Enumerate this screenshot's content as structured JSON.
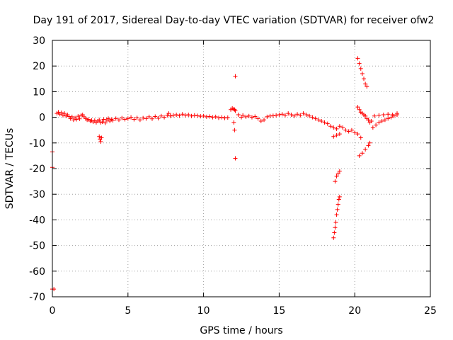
{
  "chart_data": {
    "type": "scatter",
    "title": "Day 191 of 2017, Sidereal Day-to-day VTEC variation (SDTVAR) for receiver ofw2",
    "xlabel": "GPS time / hours",
    "ylabel": "SDTVAR / TECUs",
    "xlim": [
      0,
      25
    ],
    "ylim": [
      -70,
      30
    ],
    "x_ticks": [
      0,
      5,
      10,
      15,
      20,
      25
    ],
    "y_ticks": [
      -70,
      -60,
      -50,
      -40,
      -30,
      -20,
      -10,
      0,
      10,
      20,
      30
    ],
    "x_tick_labels": [
      "0",
      "5",
      "10",
      "15",
      "20",
      "25"
    ],
    "y_tick_labels": [
      "-70",
      "-60",
      "-50",
      "-40",
      "-30",
      "-20",
      "-10",
      "0",
      "10",
      "20",
      "30"
    ],
    "grid": true,
    "marker": "+",
    "marker_color": "#ff0000",
    "series": [
      {
        "name": "SDTVAR",
        "points": [
          [
            0.0,
            -13.5
          ],
          [
            0.0,
            -19.5
          ],
          [
            0.0,
            -67.0
          ],
          [
            0.1,
            -67.0
          ],
          [
            0.3,
            1.5
          ],
          [
            0.4,
            2.0
          ],
          [
            0.5,
            1.2
          ],
          [
            0.6,
            1.8
          ],
          [
            0.7,
            0.8
          ],
          [
            0.8,
            1.5
          ],
          [
            0.9,
            0.5
          ],
          [
            1.0,
            1.0
          ],
          [
            1.1,
            0.3
          ],
          [
            1.2,
            -0.5
          ],
          [
            1.3,
            0.2
          ],
          [
            1.4,
            -1.0
          ],
          [
            1.5,
            -0.3
          ],
          [
            1.6,
            -0.8
          ],
          [
            1.7,
            0.4
          ],
          [
            1.8,
            -0.6
          ],
          [
            1.9,
            0.8
          ],
          [
            2.0,
            1.0
          ],
          [
            2.1,
            0.2
          ],
          [
            2.2,
            -0.5
          ],
          [
            2.3,
            -1.0
          ],
          [
            2.4,
            -0.8
          ],
          [
            2.5,
            -1.5
          ],
          [
            2.6,
            -1.2
          ],
          [
            2.7,
            -1.8
          ],
          [
            2.8,
            -1.3
          ],
          [
            2.9,
            -2.0
          ],
          [
            3.0,
            -1.5
          ],
          [
            3.1,
            -1.0
          ],
          [
            3.2,
            -2.0
          ],
          [
            3.1,
            -7.5
          ],
          [
            3.15,
            -8.5
          ],
          [
            3.2,
            -9.5
          ],
          [
            3.25,
            -8.0
          ],
          [
            3.3,
            -1.8
          ],
          [
            3.4,
            -0.8
          ],
          [
            3.5,
            -2.2
          ],
          [
            3.6,
            -1.0
          ],
          [
            3.7,
            -0.5
          ],
          [
            3.8,
            -1.5
          ],
          [
            3.9,
            -0.8
          ],
          [
            4.0,
            -1.2
          ],
          [
            4.2,
            -0.5
          ],
          [
            4.4,
            -1.0
          ],
          [
            4.6,
            -0.3
          ],
          [
            4.8,
            -0.8
          ],
          [
            5.0,
            -0.5
          ],
          [
            5.2,
            0.0
          ],
          [
            5.4,
            -0.8
          ],
          [
            5.6,
            -0.2
          ],
          [
            5.8,
            -1.0
          ],
          [
            6.0,
            -0.3
          ],
          [
            6.2,
            -0.5
          ],
          [
            6.4,
            0.2
          ],
          [
            6.6,
            -0.6
          ],
          [
            6.8,
            0.3
          ],
          [
            7.0,
            -0.4
          ],
          [
            7.2,
            0.5
          ],
          [
            7.4,
            0.0
          ],
          [
            7.6,
            0.8
          ],
          [
            7.7,
            1.5
          ],
          [
            7.8,
            0.5
          ],
          [
            8.0,
            0.8
          ],
          [
            8.2,
            1.0
          ],
          [
            8.4,
            0.6
          ],
          [
            8.6,
            1.2
          ],
          [
            8.8,
            0.8
          ],
          [
            9.0,
            1.0
          ],
          [
            9.2,
            0.5
          ],
          [
            9.4,
            0.8
          ],
          [
            9.6,
            0.6
          ],
          [
            9.8,
            0.4
          ],
          [
            10.0,
            0.5
          ],
          [
            10.2,
            0.2
          ],
          [
            10.4,
            0.3
          ],
          [
            10.6,
            0.0
          ],
          [
            10.8,
            0.2
          ],
          [
            11.0,
            -0.2
          ],
          [
            11.2,
            0.0
          ],
          [
            11.4,
            -0.3
          ],
          [
            11.6,
            -0.1
          ],
          [
            11.8,
            3.0
          ],
          [
            11.9,
            3.5
          ],
          [
            12.0,
            3.2
          ],
          [
            12.05,
            3.0
          ],
          [
            12.1,
            2.5
          ],
          [
            12.0,
            -2.0
          ],
          [
            12.05,
            -5.0
          ],
          [
            12.1,
            16.0
          ],
          [
            12.1,
            -16.0
          ],
          [
            12.3,
            1.0
          ],
          [
            12.5,
            0.0
          ],
          [
            12.6,
            0.8
          ],
          [
            12.8,
            0.2
          ],
          [
            13.0,
            0.5
          ],
          [
            13.2,
            0.0
          ],
          [
            13.4,
            0.3
          ],
          [
            13.6,
            -0.5
          ],
          [
            13.8,
            -1.5
          ],
          [
            14.0,
            -1.0
          ],
          [
            14.2,
            0.2
          ],
          [
            14.4,
            0.5
          ],
          [
            14.6,
            0.6
          ],
          [
            14.8,
            0.8
          ],
          [
            15.0,
            1.0
          ],
          [
            15.2,
            1.2
          ],
          [
            15.4,
            0.8
          ],
          [
            15.6,
            1.5
          ],
          [
            15.8,
            1.0
          ],
          [
            16.0,
            0.5
          ],
          [
            16.2,
            1.2
          ],
          [
            16.4,
            0.8
          ],
          [
            16.6,
            1.5
          ],
          [
            16.8,
            1.0
          ],
          [
            17.0,
            0.5
          ],
          [
            17.2,
            0.0
          ],
          [
            17.4,
            -0.5
          ],
          [
            17.6,
            -1.0
          ],
          [
            17.8,
            -1.5
          ],
          [
            18.0,
            -2.0
          ],
          [
            18.2,
            -2.5
          ],
          [
            18.4,
            -3.5
          ],
          [
            18.6,
            -4.0
          ],
          [
            18.8,
            -4.5
          ],
          [
            19.0,
            -3.5
          ],
          [
            19.2,
            -4.0
          ],
          [
            19.4,
            -5.0
          ],
          [
            19.6,
            -5.5
          ],
          [
            19.8,
            -5.0
          ],
          [
            20.0,
            -6.0
          ],
          [
            20.2,
            -6.5
          ],
          [
            20.4,
            -8.0
          ],
          [
            18.6,
            -7.5
          ],
          [
            18.8,
            -7.0
          ],
          [
            19.0,
            -6.5
          ],
          [
            18.7,
            -25.0
          ],
          [
            18.8,
            -23.0
          ],
          [
            18.9,
            -22.0
          ],
          [
            19.0,
            -21.0
          ],
          [
            18.6,
            -47.0
          ],
          [
            18.65,
            -45.0
          ],
          [
            18.7,
            -43.0
          ],
          [
            18.75,
            -41.0
          ],
          [
            18.8,
            -38.0
          ],
          [
            18.85,
            -36.0
          ],
          [
            18.9,
            -34.0
          ],
          [
            18.95,
            -32.0
          ],
          [
            19.0,
            -31.0
          ],
          [
            20.2,
            23.0
          ],
          [
            20.3,
            21.0
          ],
          [
            20.4,
            19.0
          ],
          [
            20.5,
            17.0
          ],
          [
            20.6,
            15.0
          ],
          [
            20.7,
            13.0
          ],
          [
            20.8,
            12.0
          ],
          [
            20.2,
            4.0
          ],
          [
            20.3,
            3.0
          ],
          [
            20.4,
            2.0
          ],
          [
            20.5,
            1.5
          ],
          [
            20.6,
            1.0
          ],
          [
            20.7,
            0.5
          ],
          [
            20.8,
            -0.5
          ],
          [
            20.9,
            -1.0
          ],
          [
            21.0,
            -2.0
          ],
          [
            21.1,
            -1.5
          ],
          [
            20.3,
            -15.0
          ],
          [
            20.5,
            -14.0
          ],
          [
            20.7,
            -12.5
          ],
          [
            20.9,
            -11.0
          ],
          [
            21.0,
            -10.0
          ],
          [
            21.2,
            -4.0
          ],
          [
            21.4,
            -3.0
          ],
          [
            21.6,
            -2.0
          ],
          [
            21.8,
            -1.5
          ],
          [
            22.0,
            -1.0
          ],
          [
            22.2,
            -0.5
          ],
          [
            22.4,
            0.0
          ],
          [
            22.6,
            0.5
          ],
          [
            22.8,
            1.0
          ],
          [
            21.3,
            0.5
          ],
          [
            21.6,
            0.8
          ],
          [
            21.9,
            1.0
          ],
          [
            22.2,
            1.2
          ],
          [
            22.5,
            1.0
          ],
          [
            22.8,
            1.5
          ]
        ]
      }
    ]
  }
}
